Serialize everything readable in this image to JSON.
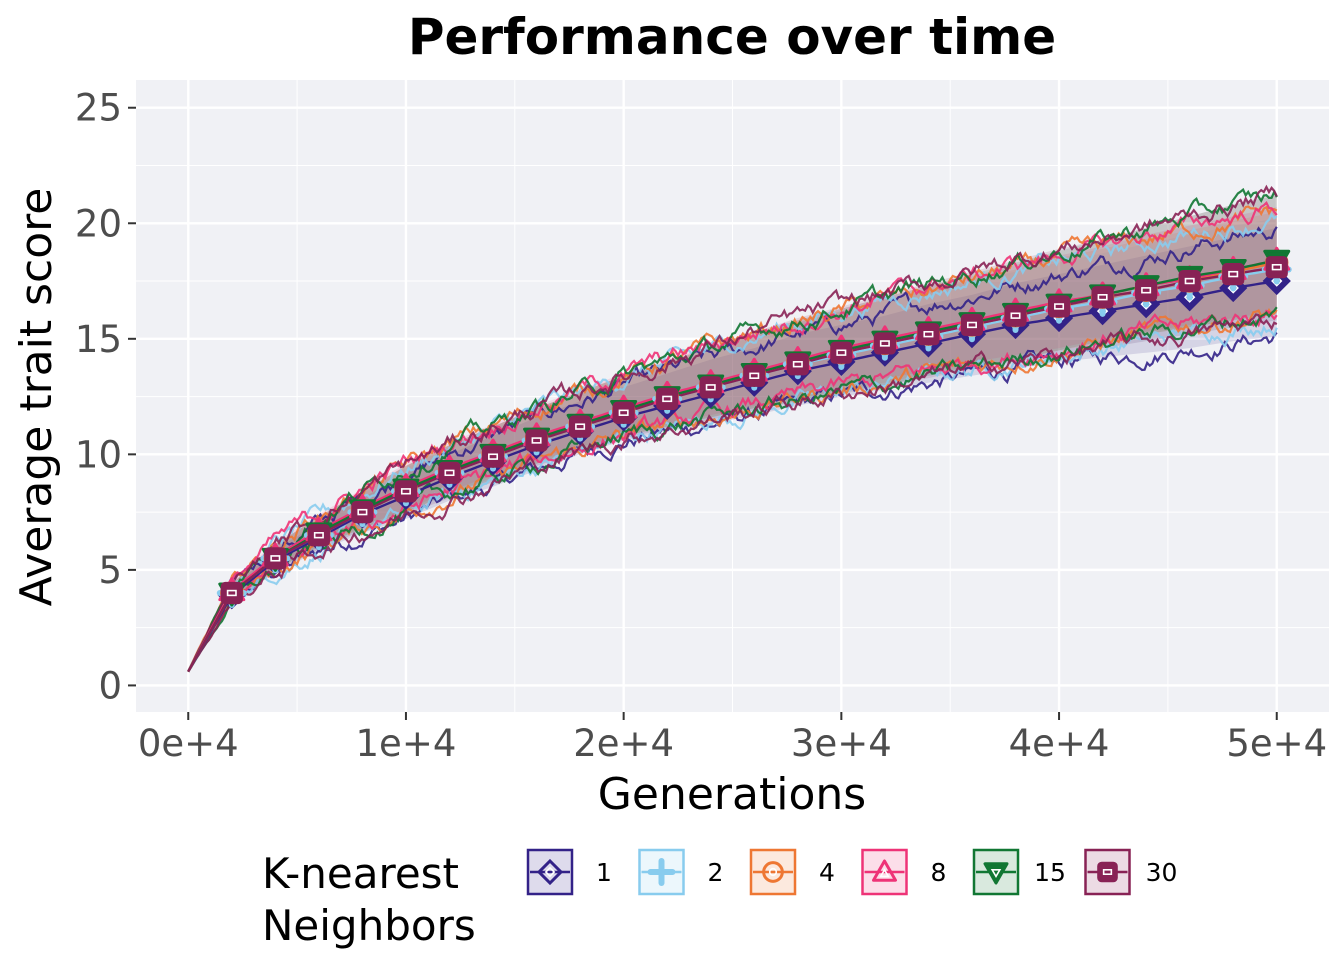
{
  "chart_data": {
    "type": "line",
    "title": "Performance over time",
    "xlabel": "Generations",
    "ylabel": "Average trait score",
    "xlim": [
      -2400,
      52400
    ],
    "ylim": [
      -1.15,
      26.2
    ],
    "x_ticks": [
      0,
      10000,
      20000,
      30000,
      40000,
      50000
    ],
    "x_tick_labels": [
      "0e+4",
      "1e+4",
      "2e+4",
      "3e+4",
      "4e+4",
      "5e+4"
    ],
    "y_ticks": [
      0,
      5,
      10,
      15,
      20,
      25
    ],
    "y_tick_labels": [
      "0",
      "5",
      "10",
      "15",
      "20",
      "25"
    ],
    "grid": true,
    "legend": {
      "title": "K-nearest\nNeighbors",
      "position": "bottom"
    },
    "x": [
      0,
      2000,
      4000,
      6000,
      8000,
      10000,
      12000,
      14000,
      16000,
      18000,
      20000,
      22000,
      24000,
      26000,
      28000,
      30000,
      32000,
      34000,
      36000,
      38000,
      40000,
      42000,
      44000,
      46000,
      48000,
      50000
    ],
    "series": [
      {
        "name": "1",
        "color": "#332288",
        "marker": "diamond",
        "values": [
          0.6,
          3.9,
          5.4,
          6.4,
          7.4,
          8.2,
          9.0,
          9.7,
          10.4,
          11.0,
          11.6,
          12.1,
          12.6,
          13.1,
          13.6,
          14.0,
          14.4,
          14.8,
          15.2,
          15.6,
          15.9,
          16.2,
          16.5,
          16.8,
          17.2,
          17.5
        ],
        "band_low": [
          0.6,
          3.6,
          4.9,
          5.8,
          6.6,
          7.2,
          8.0,
          8.6,
          9.3,
          10.0,
          10.6,
          11.0,
          11.3,
          11.7,
          12.1,
          12.5,
          12.8,
          13.1,
          13.4,
          13.7,
          14.0,
          14.2,
          14.4,
          14.6,
          14.9,
          15.1
        ],
        "band_high": [
          0.6,
          4.2,
          5.9,
          7.0,
          8.1,
          9.2,
          10.0,
          10.8,
          11.6,
          12.3,
          12.9,
          13.5,
          14.1,
          14.6,
          15.2,
          15.6,
          16.0,
          16.5,
          16.9,
          17.4,
          17.8,
          18.2,
          18.6,
          19.0,
          19.4,
          19.8
        ]
      },
      {
        "name": "2",
        "color": "#88CCEE",
        "marker": "plus",
        "values": [
          0.6,
          4.0,
          5.5,
          6.5,
          7.5,
          8.4,
          9.2,
          9.9,
          10.6,
          11.2,
          11.8,
          12.4,
          12.9,
          13.4,
          13.9,
          14.3,
          14.7,
          15.1,
          15.5,
          15.9,
          16.3,
          16.6,
          17.0,
          17.3,
          17.7,
          18.0
        ],
        "band_low": [
          0.6,
          3.7,
          5.0,
          5.9,
          6.7,
          7.4,
          8.2,
          8.8,
          9.5,
          10.1,
          10.7,
          11.1,
          11.5,
          11.9,
          12.3,
          12.7,
          13.0,
          13.4,
          13.7,
          14.0,
          14.3,
          14.6,
          14.9,
          15.2,
          15.5,
          15.8
        ],
        "band_high": [
          0.6,
          4.4,
          6.1,
          7.2,
          8.3,
          9.4,
          10.3,
          11.1,
          11.9,
          12.6,
          13.3,
          13.9,
          14.5,
          15.1,
          15.7,
          16.2,
          16.7,
          17.1,
          17.5,
          17.9,
          18.3,
          18.7,
          19.1,
          19.5,
          19.9,
          20.2
        ]
      },
      {
        "name": "4",
        "color": "#EE7733",
        "marker": "circle",
        "values": [
          0.6,
          4.0,
          5.5,
          6.6,
          7.6,
          8.5,
          9.3,
          10.0,
          10.7,
          11.3,
          11.9,
          12.5,
          13.0,
          13.5,
          14.0,
          14.4,
          14.8,
          15.2,
          15.6,
          16.0,
          16.4,
          16.8,
          17.1,
          17.5,
          17.9,
          18.3
        ],
        "band_low": [
          0.6,
          3.7,
          5.0,
          6.0,
          6.8,
          7.5,
          8.3,
          9.0,
          9.6,
          10.2,
          10.8,
          11.2,
          11.6,
          12.0,
          12.4,
          12.8,
          13.1,
          13.5,
          13.8,
          14.1,
          14.5,
          14.8,
          15.2,
          15.5,
          15.8,
          16.1
        ],
        "band_high": [
          0.6,
          4.4,
          6.1,
          7.3,
          8.4,
          9.5,
          10.4,
          11.2,
          12.0,
          12.7,
          13.4,
          14.0,
          14.6,
          15.2,
          15.7,
          16.2,
          16.7,
          17.1,
          17.6,
          18.0,
          18.5,
          18.9,
          19.3,
          19.7,
          20.1,
          20.5
        ]
      },
      {
        "name": "8",
        "color": "#EE3377",
        "marker": "triangle",
        "values": [
          0.6,
          4.1,
          5.6,
          6.7,
          7.7,
          8.6,
          9.4,
          10.1,
          10.8,
          11.4,
          12.0,
          12.6,
          13.1,
          13.6,
          14.1,
          14.6,
          15.0,
          15.4,
          15.8,
          16.2,
          16.6,
          16.9,
          17.3,
          17.6,
          18.0,
          18.4
        ],
        "band_low": [
          0.6,
          3.8,
          5.1,
          6.1,
          6.9,
          7.6,
          8.4,
          9.1,
          9.7,
          10.3,
          10.9,
          11.3,
          11.7,
          12.1,
          12.5,
          12.9,
          13.3,
          13.6,
          14.0,
          14.3,
          14.6,
          15.0,
          15.3,
          15.6,
          15.9,
          16.2
        ],
        "band_high": [
          0.6,
          4.5,
          6.2,
          7.4,
          8.5,
          9.6,
          10.5,
          11.3,
          12.1,
          12.8,
          13.5,
          14.1,
          14.7,
          15.3,
          15.8,
          16.3,
          16.8,
          17.3,
          17.7,
          18.2,
          18.6,
          19.0,
          19.5,
          19.9,
          20.3,
          20.7
        ]
      },
      {
        "name": "15",
        "color": "#117733",
        "marker": "triangle-down",
        "values": [
          0.6,
          4.0,
          5.5,
          6.6,
          7.6,
          8.5,
          9.3,
          10.0,
          10.7,
          11.3,
          11.9,
          12.5,
          13.0,
          13.5,
          14.0,
          14.5,
          14.9,
          15.3,
          15.7,
          16.1,
          16.5,
          16.9,
          17.3,
          17.7,
          18.0,
          18.4
        ],
        "band_low": [
          0.6,
          3.6,
          5.0,
          6.0,
          6.8,
          7.5,
          8.3,
          8.9,
          9.6,
          10.2,
          10.8,
          11.2,
          11.6,
          12.0,
          12.3,
          12.7,
          13.0,
          13.4,
          13.7,
          14.1,
          14.5,
          14.9,
          15.2,
          15.5,
          15.8,
          16.1
        ],
        "band_high": [
          0.6,
          4.4,
          6.1,
          7.3,
          8.4,
          9.5,
          10.4,
          11.2,
          12.0,
          12.7,
          13.4,
          14.0,
          14.6,
          15.2,
          15.8,
          16.3,
          16.8,
          17.3,
          17.8,
          18.3,
          18.8,
          19.3,
          19.8,
          20.3,
          20.8,
          21.2
        ]
      },
      {
        "name": "30",
        "color": "#882255",
        "marker": "square",
        "values": [
          0.6,
          4.0,
          5.5,
          6.5,
          7.5,
          8.4,
          9.2,
          9.9,
          10.6,
          11.2,
          11.8,
          12.4,
          12.9,
          13.4,
          13.9,
          14.4,
          14.8,
          15.2,
          15.6,
          16.0,
          16.4,
          16.8,
          17.1,
          17.5,
          17.8,
          18.1
        ],
        "band_low": [
          0.6,
          3.6,
          4.9,
          5.9,
          6.7,
          7.4,
          8.1,
          8.8,
          9.5,
          10.1,
          10.7,
          11.1,
          11.5,
          11.9,
          12.3,
          12.6,
          13.0,
          13.3,
          13.7,
          14.0,
          14.3,
          14.6,
          14.9,
          15.2,
          15.5,
          15.8
        ],
        "band_high": [
          0.6,
          4.4,
          6.1,
          7.3,
          8.4,
          9.5,
          10.4,
          11.2,
          12.0,
          12.7,
          13.4,
          14.0,
          14.7,
          15.3,
          15.9,
          16.4,
          16.9,
          17.4,
          17.9,
          18.4,
          18.9,
          19.3,
          19.8,
          20.3,
          20.8,
          21.3
        ]
      }
    ]
  }
}
